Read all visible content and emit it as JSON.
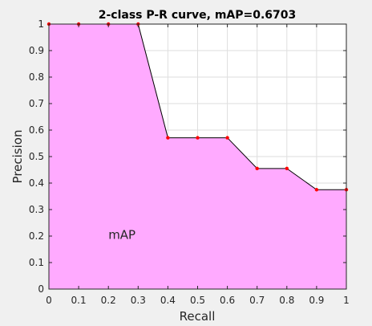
{
  "chart_data": {
    "type": "area",
    "title": "2-class P-R curve, mAP=0.6703",
    "xlabel": "Recall",
    "ylabel": "Precision",
    "xlim": [
      0,
      1
    ],
    "ylim": [
      0,
      1
    ],
    "grid": true,
    "x_ticks": [
      0,
      0.1,
      0.2,
      0.3,
      0.4,
      0.5,
      0.6,
      0.7,
      0.8,
      0.9,
      1
    ],
    "x_tick_labels": [
      "0",
      "0.1",
      "0.2",
      "0.3",
      "0.4",
      "0.5",
      "0.6",
      "0.7",
      "0.8",
      "0.9",
      "1"
    ],
    "y_ticks": [
      0,
      0.1,
      0.2,
      0.3,
      0.4,
      0.5,
      0.6,
      0.7,
      0.8,
      0.9,
      1
    ],
    "y_tick_labels": [
      "0",
      "0.1",
      "0.2",
      "0.3",
      "0.4",
      "0.5",
      "0.6",
      "0.7",
      "0.8",
      "0.9",
      "1"
    ],
    "series": [
      {
        "x": [
          0,
          0.1,
          0.2,
          0.3,
          0.4,
          0.5,
          0.6,
          0.7,
          0.8,
          0.9,
          1
        ],
        "values": [
          1,
          1,
          1,
          1,
          0.571,
          0.571,
          0.571,
          0.455,
          0.455,
          0.375,
          0.375
        ]
      }
    ],
    "area_label": {
      "text": "mAP",
      "x": 0.2,
      "y": 0.19
    },
    "colors": {
      "fill": "#ffaaff",
      "line": "#000000",
      "marker": "#ff0000",
      "grid": "#dedede"
    }
  }
}
